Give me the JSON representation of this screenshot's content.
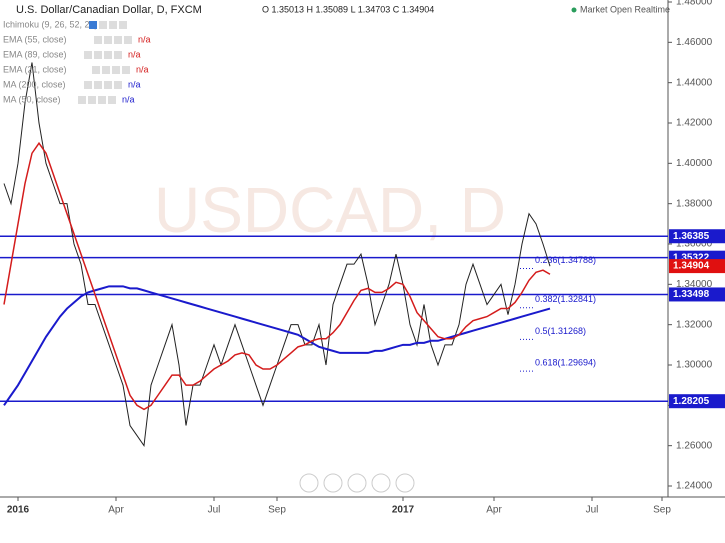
{
  "chart_data": {
    "type": "line",
    "title": "U.S. Dollar/Canadian Dollar, D, FXCM",
    "ohlc_text": "O 1.35013 H 1.35089 L 1.34703 C 1.34904",
    "status": "Market Open Realtime",
    "watermark": "USDCAD, D",
    "indicators": [
      {
        "name": "Ichimoku (9, 26, 52, 26)",
        "value": ""
      },
      {
        "name": "EMA (55, close)",
        "value": "n/a"
      },
      {
        "name": "EMA (89, close)",
        "value": "n/a"
      },
      {
        "name": "EMA (21, close)",
        "value": "n/a"
      },
      {
        "name": "MA (200, close)",
        "value": "n/a"
      },
      {
        "name": "MA (50, close)",
        "value": "n/a"
      }
    ],
    "categories": [
      null,
      null,
      "2016",
      null,
      null,
      null,
      null,
      null,
      null,
      null,
      null,
      null,
      null,
      null,
      null,
      null,
      "Apr",
      null,
      null,
      null,
      null,
      null,
      null,
      null,
      null,
      null,
      null,
      null,
      null,
      null,
      "Jul",
      null,
      null,
      null,
      null,
      null,
      null,
      null,
      null,
      "Sep",
      null,
      null,
      null,
      null,
      null,
      null,
      null,
      null,
      null,
      null,
      null,
      null,
      null,
      null,
      null,
      null,
      null,
      "2017",
      null,
      null,
      null,
      null,
      null,
      null,
      null,
      null,
      null,
      null,
      null,
      null,
      "Apr",
      null,
      null,
      null,
      null,
      null,
      null,
      null,
      null,
      null,
      null,
      null,
      null,
      null,
      "Jul",
      null,
      null,
      null,
      null,
      null,
      null,
      null,
      null,
      null,
      "Sep"
    ],
    "series": [
      {
        "name": "USDCAD",
        "color": "#222222",
        "width": 1,
        "values": [
          1.39,
          1.38,
          1.4,
          1.43,
          1.45,
          1.42,
          1.4,
          1.39,
          1.38,
          1.38,
          1.36,
          1.35,
          1.33,
          1.33,
          1.32,
          1.31,
          1.3,
          1.29,
          1.27,
          1.265,
          1.26,
          1.29,
          1.3,
          1.31,
          1.32,
          1.3,
          1.27,
          1.29,
          1.29,
          1.3,
          1.31,
          1.3,
          1.31,
          1.32,
          1.31,
          1.3,
          1.29,
          1.28,
          1.29,
          1.3,
          1.31,
          1.32,
          1.32,
          1.31,
          1.31,
          1.32,
          1.3,
          1.33,
          1.34,
          1.35,
          1.35,
          1.355,
          1.34,
          1.32,
          1.33,
          1.34,
          1.355,
          1.34,
          1.32,
          1.31,
          1.33,
          1.31,
          1.3,
          1.31,
          1.31,
          1.32,
          1.34,
          1.35,
          1.34,
          1.33,
          1.335,
          1.34,
          1.325,
          1.34,
          1.36,
          1.375,
          1.37,
          1.36,
          1.349,
          null,
          null,
          null,
          null,
          null,
          null,
          null,
          null,
          null,
          null,
          null,
          null,
          null,
          null,
          null,
          null
        ]
      },
      {
        "name": "MA (200, close)",
        "color": "#1a1acc",
        "width": 2,
        "values": [
          1.28,
          1.285,
          1.29,
          1.296,
          1.302,
          1.308,
          1.314,
          1.319,
          1.324,
          1.328,
          1.331,
          1.334,
          1.336,
          1.337,
          1.338,
          1.339,
          1.339,
          1.339,
          1.338,
          1.338,
          1.337,
          1.336,
          1.335,
          1.334,
          1.333,
          1.332,
          1.331,
          1.33,
          1.329,
          1.328,
          1.327,
          1.326,
          1.325,
          1.324,
          1.323,
          1.322,
          1.321,
          1.32,
          1.319,
          1.318,
          1.317,
          1.316,
          1.315,
          1.313,
          1.311,
          1.309,
          1.308,
          1.307,
          1.306,
          1.306,
          1.306,
          1.306,
          1.306,
          1.307,
          1.307,
          1.308,
          1.309,
          1.31,
          1.31,
          1.311,
          1.311,
          1.312,
          1.312,
          1.313,
          1.314,
          1.315,
          1.316,
          1.317,
          1.318,
          1.319,
          1.32,
          1.321,
          1.322,
          1.323,
          1.324,
          1.325,
          1.326,
          1.327,
          1.328,
          null,
          null,
          null,
          null,
          null,
          null,
          null,
          null,
          null,
          null,
          null,
          null,
          null,
          null,
          null,
          null
        ]
      },
      {
        "name": "EMA (55, close)",
        "color": "#d41c1c",
        "width": 1.5,
        "values": [
          1.33,
          1.35,
          1.37,
          1.39,
          1.405,
          1.41,
          1.405,
          1.395,
          1.385,
          1.375,
          1.365,
          1.355,
          1.345,
          1.335,
          1.325,
          1.315,
          1.305,
          1.295,
          1.285,
          1.28,
          1.278,
          1.28,
          1.285,
          1.29,
          1.295,
          1.295,
          1.29,
          1.29,
          1.292,
          1.295,
          1.298,
          1.3,
          1.302,
          1.305,
          1.306,
          1.305,
          1.3,
          1.298,
          1.298,
          1.3,
          1.303,
          1.306,
          1.309,
          1.31,
          1.312,
          1.313,
          1.313,
          1.316,
          1.32,
          1.326,
          1.332,
          1.337,
          1.338,
          1.336,
          1.336,
          1.338,
          1.341,
          1.34,
          1.334,
          1.326,
          1.322,
          1.318,
          1.314,
          1.313,
          1.313,
          1.315,
          1.319,
          1.322,
          1.323,
          1.324,
          1.326,
          1.328,
          1.328,
          1.331,
          1.336,
          1.342,
          1.346,
          1.347,
          1.345,
          null,
          null,
          null,
          null,
          null,
          null,
          null,
          null,
          null,
          null,
          null,
          null,
          null,
          null,
          null,
          null
        ]
      }
    ],
    "levels": [
      {
        "value": 1.36385,
        "color": "#1a1acc"
      },
      {
        "value": 1.35322,
        "color": "#1a1acc"
      },
      {
        "value": 1.33498,
        "color": "#1a1acc"
      },
      {
        "value": 1.28205,
        "color": "#1a1acc"
      }
    ],
    "last_price": {
      "value": 1.34904,
      "color": "#e01010"
    },
    "fib_labels": [
      {
        "label": "0.236(1.34788)",
        "value": 1.34788
      },
      {
        "label": "0.382(1.32841)",
        "value": 1.32841
      },
      {
        "label": "0.5(1.31268)",
        "value": 1.31268
      },
      {
        "label": "0.618(1.29694)",
        "value": 1.29694
      }
    ],
    "ylim": [
      1.24,
      1.48
    ],
    "yticks": [
      {
        "value": 1.24,
        "label": "1.24000"
      },
      {
        "value": 1.26,
        "label": "1.26000"
      },
      {
        "value": 1.28,
        "label": "1.28000"
      },
      {
        "value": 1.3,
        "label": "1.30000"
      },
      {
        "value": 1.32,
        "label": "1.32000"
      },
      {
        "value": 1.34,
        "label": "1.34000"
      },
      {
        "value": 1.36,
        "label": "1.36000"
      },
      {
        "value": 1.38,
        "label": "1.38000"
      },
      {
        "value": 1.4,
        "label": "1.40000"
      },
      {
        "value": 1.42,
        "label": "1.42000"
      },
      {
        "value": 1.44,
        "label": "1.44000"
      },
      {
        "value": 1.46,
        "label": "1.46000"
      },
      {
        "value": 1.48,
        "label": "1.48000"
      }
    ]
  }
}
